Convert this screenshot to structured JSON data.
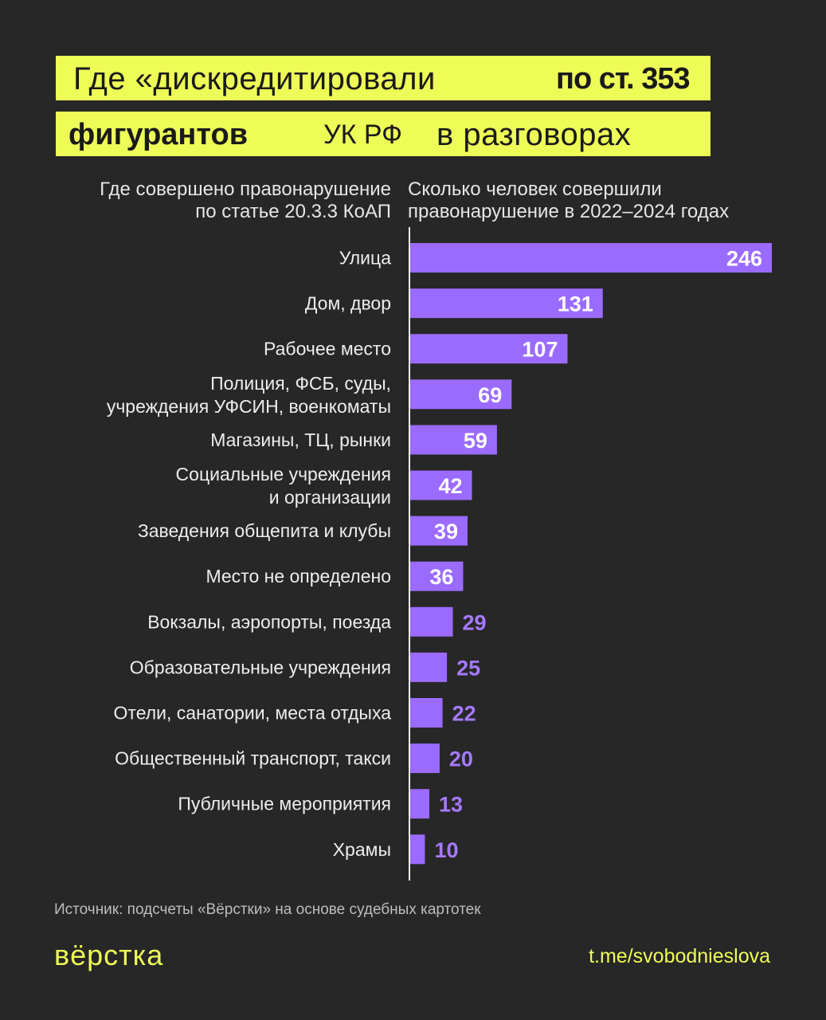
{
  "title": {
    "line1_a": "Где «дискредитировали",
    "line1_b": "по ст. 353",
    "line2_a": "фигурантов",
    "line2_b": "УК РФ",
    "line2_c": "в разговорах"
  },
  "chart_data": {
    "type": "bar",
    "orientation": "horizontal",
    "xlabel": "Сколько человек совершили правонарушение в 2022–2024 годах",
    "ylabel": "Где совершено правонарушение по статье 20.3.3 КоАП",
    "xlabel_lines": [
      "Сколько человек совершили",
      "правонарушение в 2022–2024 годах"
    ],
    "ylabel_lines": [
      "Где совершено правонарушение",
      "по статье 20.3.3 КоАП"
    ],
    "xlim": [
      0,
      246
    ],
    "bar_color": "#9b6bff",
    "categories": [
      [
        "Улица"
      ],
      [
        "Дом, двор"
      ],
      [
        "Рабочее место"
      ],
      [
        "Полиция, ФСБ, суды,",
        "учреждения УФСИН, военкоматы"
      ],
      [
        "Магазины, ТЦ, рынки"
      ],
      [
        "Социальные учреждения",
        "и организации"
      ],
      [
        "Заведения общепита и клубы"
      ],
      [
        "Место не определено"
      ],
      [
        "Вокзалы, аэропорты, поезда"
      ],
      [
        "Образовательные учреждения"
      ],
      [
        "Отели, санатории, места отдыха"
      ],
      [
        "Общественный транспорт, такси"
      ],
      [
        "Публичные мероприятия"
      ],
      [
        "Храмы"
      ]
    ],
    "values": [
      246,
      131,
      107,
      69,
      59,
      42,
      39,
      36,
      29,
      25,
      22,
      20,
      13,
      10
    ]
  },
  "footer": {
    "source": "Источник: подсчеты «Вёрстки» на основе судебных картотек",
    "brand": "вёрстка",
    "channel": "t.me/svobodnieslova"
  },
  "colors": {
    "background": "#272727",
    "accent_yellow": "#eefc57",
    "bar": "#9b6bff",
    "value_outside": "#a579ff"
  }
}
